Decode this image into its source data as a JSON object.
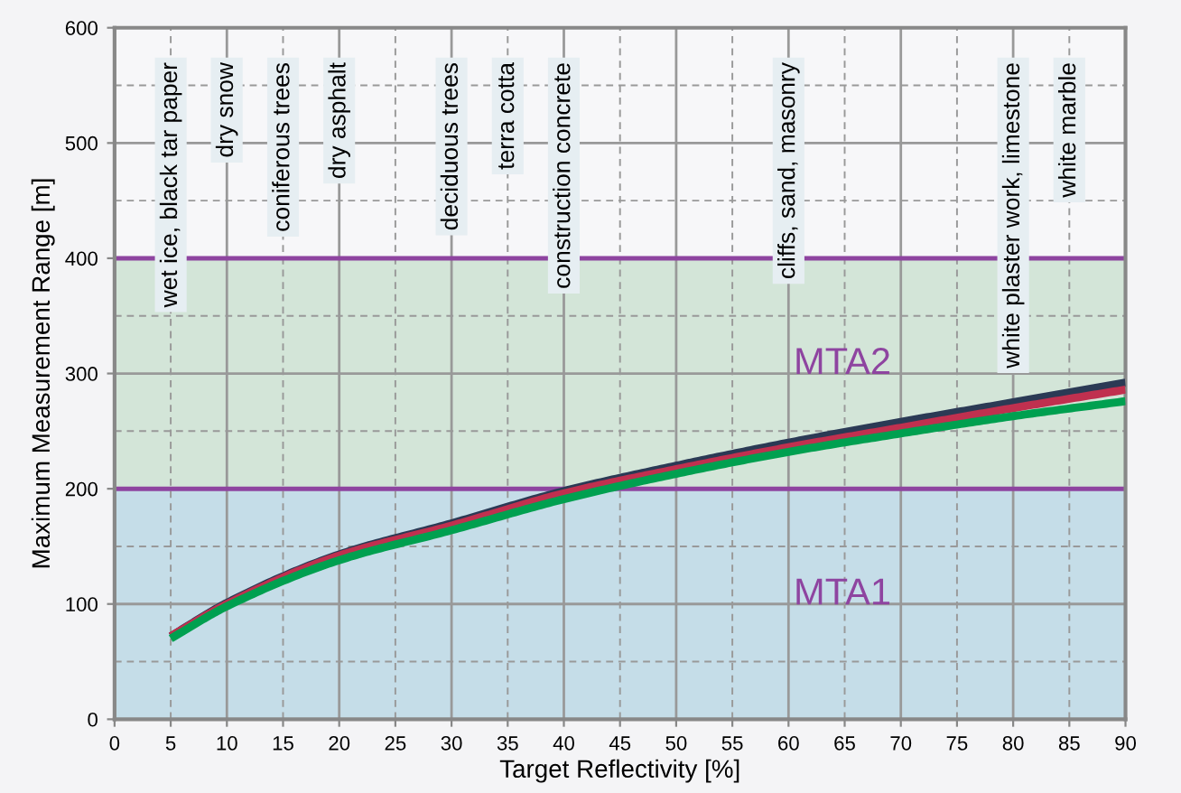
{
  "chart_data": {
    "type": "line",
    "xlabel": "Target Reflectivity [%]",
    "ylabel": "Maximum Measurement Range [m]",
    "xlim": [
      0,
      90
    ],
    "xticks": [
      0,
      5,
      10,
      15,
      20,
      25,
      30,
      35,
      40,
      45,
      50,
      55,
      60,
      65,
      70,
      75,
      80,
      85,
      90
    ],
    "ylim": [
      0,
      600
    ],
    "yticks": [
      0,
      100,
      200,
      300,
      400,
      500,
      600
    ],
    "grid": true,
    "line_style": "solid",
    "marker": "none",
    "legend": false,
    "series": [
      {
        "color": "#2b3a55",
        "x": [
          5,
          10,
          20,
          30,
          40,
          50,
          60,
          70,
          80,
          90
        ],
        "values": [
          72,
          101,
          143,
          170,
          198,
          220,
          240,
          258,
          275,
          292
        ]
      },
      {
        "color": "#c0304f",
        "x": [
          5,
          10,
          20,
          30,
          40,
          50,
          60,
          70,
          80,
          90
        ],
        "values": [
          72,
          100,
          142,
          168,
          196,
          217,
          236,
          253,
          270,
          286
        ]
      },
      {
        "color": "#00a050",
        "x": [
          5,
          10,
          20,
          30,
          40,
          50,
          60,
          70,
          80,
          90
        ],
        "values": [
          70,
          98,
          138,
          164,
          191,
          213,
          232,
          248,
          263,
          276
        ]
      }
    ],
    "bands": [
      {
        "axis": "y",
        "from": 0,
        "to": 200,
        "label": "MTA1",
        "color": "#c5dde8"
      },
      {
        "axis": "y",
        "from": 200,
        "to": 400,
        "label": "MTA2",
        "color": "#d3e5d8"
      }
    ],
    "annotations": [
      "wet ice, black tar paper",
      "dry snow",
      "coniferous trees",
      "dry asphalt",
      "deciduous trees",
      "terra cotta",
      "construction concrete",
      "cliffs, sand, masonry",
      "white plaster work, limestone",
      "white marble"
    ]
  }
}
